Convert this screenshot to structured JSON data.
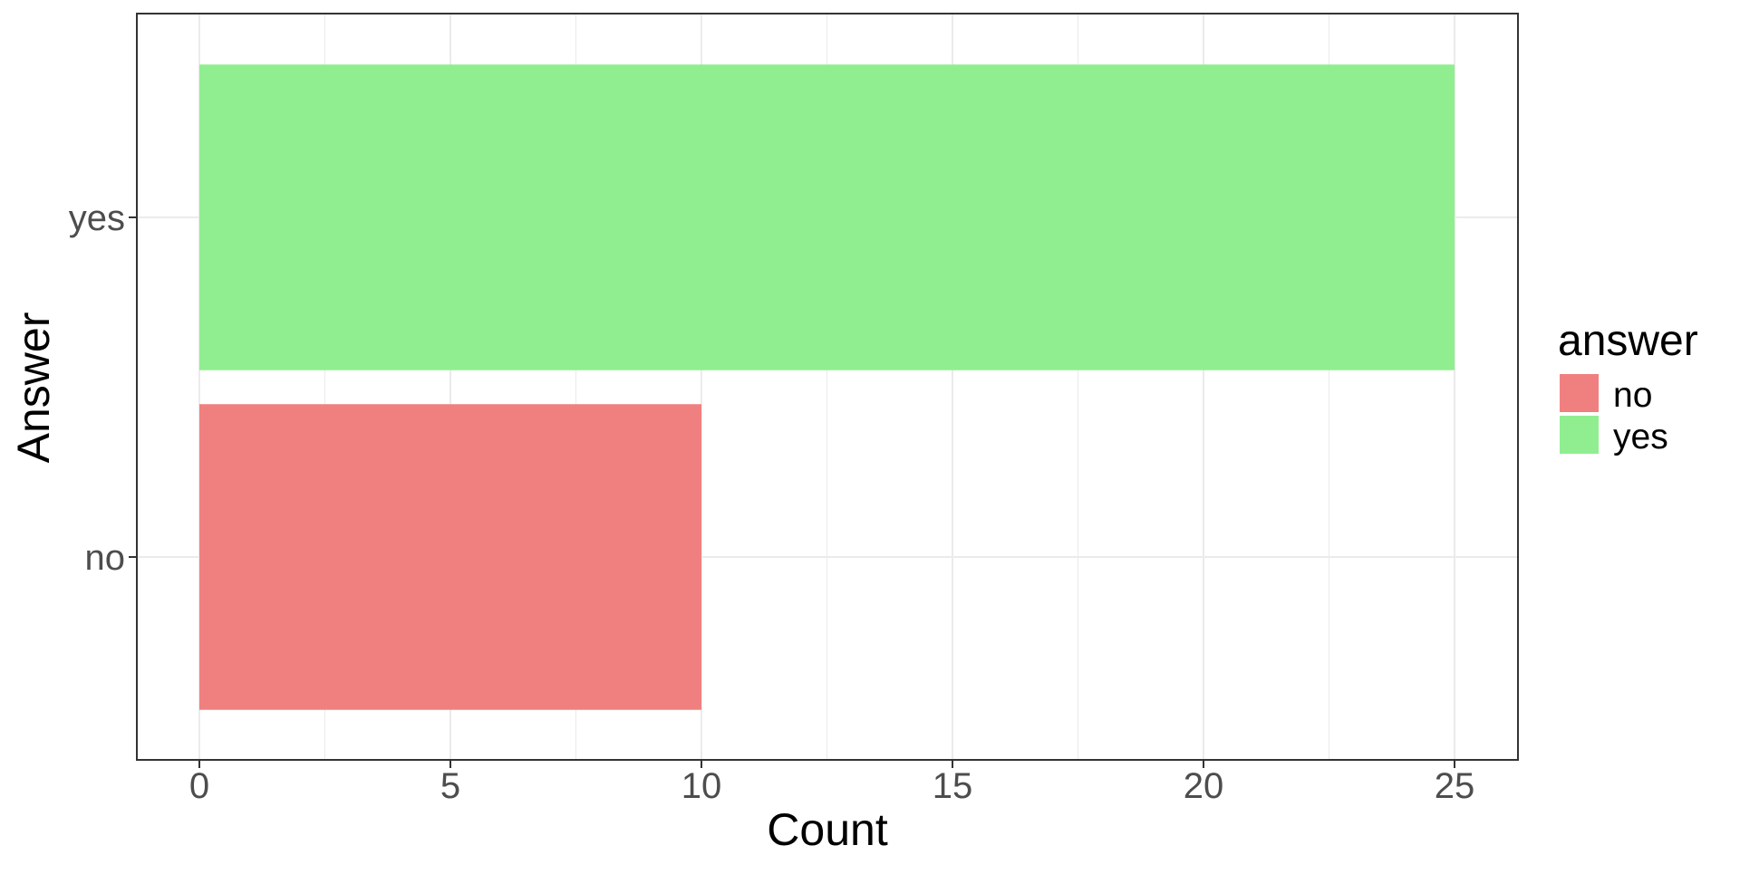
{
  "chart_data": {
    "type": "bar",
    "orientation": "horizontal",
    "categories": [
      "no",
      "yes"
    ],
    "values": [
      10,
      25
    ],
    "colors": {
      "no": "#F08080",
      "yes": "#90EE90"
    },
    "title": "",
    "xlabel": "Count",
    "ylabel": "Answer",
    "xlim": [
      0,
      25
    ],
    "xticks": [
      0,
      5,
      10,
      15,
      20,
      25
    ],
    "grid": true,
    "legend": {
      "title": "answer",
      "placement": "right",
      "entries": [
        {
          "label": "no",
          "color": "#F08080"
        },
        {
          "label": "yes",
          "color": "#90EE90"
        }
      ]
    }
  }
}
